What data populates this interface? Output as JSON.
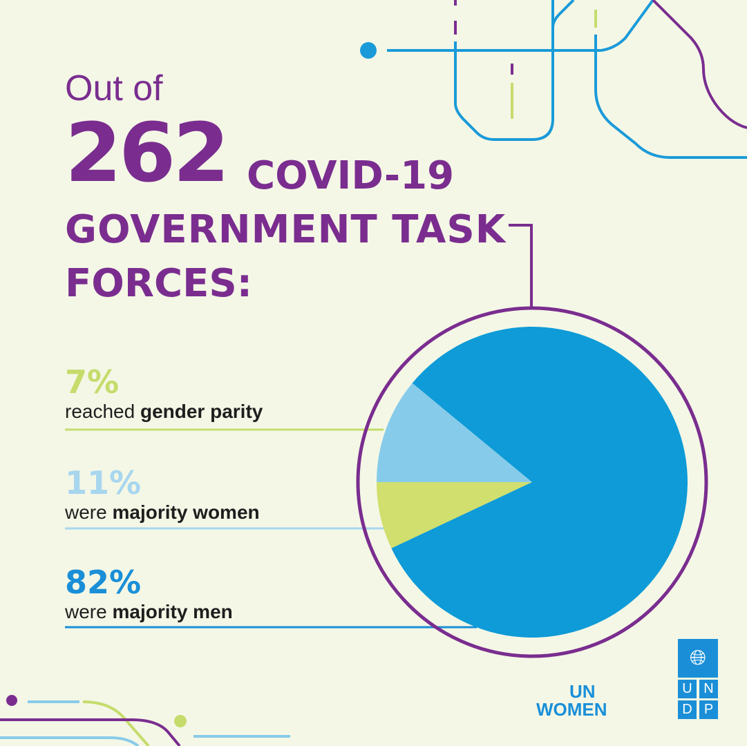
{
  "headline": {
    "out_of": "Out of",
    "number": "262",
    "line_a": "COVID-19",
    "line_b": "GOVERNMENT TASK",
    "line_c": "FORCES:"
  },
  "stats": [
    {
      "pct": "7%",
      "pre": "reached ",
      "bold": "gender parity",
      "color": "#c5dc6c"
    },
    {
      "pct": "11%",
      "pre": "were ",
      "bold": "majority women",
      "color": "#a8d6ef"
    },
    {
      "pct": "82%",
      "pre": "were ",
      "bold": "majority men",
      "color": "#1a8fd8"
    }
  ],
  "chart_data": {
    "type": "pie",
    "categories": [
      "reached gender parity",
      "were majority women",
      "were majority men"
    ],
    "values": [
      7,
      11,
      82
    ],
    "colors": [
      "#d0df6d",
      "#87cbea",
      "#0e9bd7"
    ]
  },
  "logos": {
    "unwomen_line1": "UN",
    "unwomen_line2": "WOMEN",
    "undp_letters": [
      "U",
      "N",
      "D",
      "P"
    ]
  },
  "colors": {
    "purple": "#7a2d8f",
    "blue": "#1a8fd8",
    "lime": "#c5dc6c",
    "background": "#f4f7e6"
  }
}
